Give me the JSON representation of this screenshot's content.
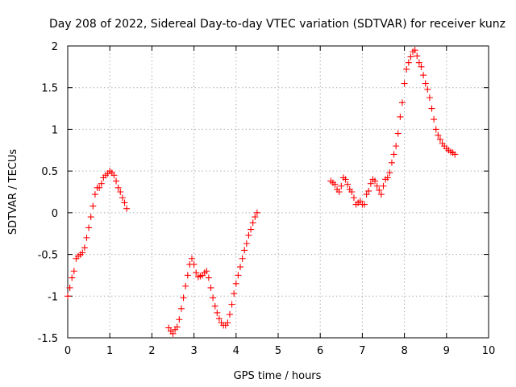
{
  "chart_data": {
    "type": "scatter",
    "title": "Day 208 of 2022, Sidereal Day-to-day VTEC variation (SDTVAR) for receiver kunz",
    "xlabel": "GPS time / hours",
    "ylabel": "SDTVAR / TECUs",
    "xlim": [
      0,
      10
    ],
    "ylim": [
      -1.5,
      2
    ],
    "x_ticks": [
      0,
      1,
      2,
      3,
      4,
      5,
      6,
      7,
      8,
      9,
      10
    ],
    "y_ticks": [
      -1.5,
      -1,
      -0.5,
      0,
      0.5,
      1,
      1.5,
      2
    ],
    "x_tick_labels": [
      "0",
      "1",
      "2",
      "3",
      "4",
      "5",
      "6",
      "7",
      "8",
      "9",
      "10"
    ],
    "y_tick_labels": [
      "-1.5",
      "-1",
      "-0.5",
      "0",
      "0.5",
      "1",
      "1.5",
      "2"
    ],
    "grid": true,
    "marker": "plus",
    "color": "#ff0000",
    "series": [
      {
        "name": "segment-1",
        "x": [
          0.0,
          0.05,
          0.1,
          0.15,
          0.2,
          0.25,
          0.3,
          0.35,
          0.4,
          0.45,
          0.5,
          0.55,
          0.6,
          0.65,
          0.7,
          0.75,
          0.8,
          0.85,
          0.9,
          0.95,
          1.0,
          1.05,
          1.1,
          1.15,
          1.2,
          1.25,
          1.3,
          1.35,
          1.4
        ],
        "y": [
          -1.0,
          -0.9,
          -0.78,
          -0.7,
          -0.55,
          -0.52,
          -0.5,
          -0.48,
          -0.42,
          -0.3,
          -0.18,
          -0.05,
          0.08,
          0.22,
          0.3,
          0.3,
          0.35,
          0.42,
          0.45,
          0.47,
          0.5,
          0.48,
          0.45,
          0.38,
          0.3,
          0.25,
          0.18,
          0.12,
          0.05
        ]
      },
      {
        "name": "segment-2",
        "x": [
          2.4,
          2.45,
          2.5,
          2.55,
          2.6,
          2.65,
          2.7,
          2.75,
          2.8,
          2.85,
          2.9,
          2.95,
          3.0,
          3.05,
          3.1,
          3.15,
          3.2,
          3.25,
          3.3,
          3.35,
          3.4,
          3.45,
          3.5,
          3.55,
          3.6,
          3.65,
          3.7,
          3.75,
          3.8,
          3.85,
          3.9,
          3.95,
          4.0,
          4.05,
          4.1,
          4.15,
          4.2,
          4.25,
          4.3,
          4.35,
          4.4,
          4.45,
          4.5
        ],
        "y": [
          -1.38,
          -1.42,
          -1.45,
          -1.4,
          -1.37,
          -1.28,
          -1.15,
          -1.02,
          -0.88,
          -0.75,
          -0.62,
          -0.55,
          -0.62,
          -0.72,
          -0.77,
          -0.76,
          -0.75,
          -0.72,
          -0.7,
          -0.78,
          -0.9,
          -1.02,
          -1.12,
          -1.2,
          -1.27,
          -1.32,
          -1.35,
          -1.35,
          -1.32,
          -1.22,
          -1.1,
          -0.97,
          -0.85,
          -0.75,
          -0.65,
          -0.55,
          -0.45,
          -0.37,
          -0.27,
          -0.2,
          -0.12,
          -0.05,
          0.0
        ]
      },
      {
        "name": "segment-3",
        "x": [
          6.25,
          6.3,
          6.35,
          6.4,
          6.45,
          6.5,
          6.55,
          6.6,
          6.65,
          6.7,
          6.75,
          6.8,
          6.85,
          6.9,
          6.95,
          7.0,
          7.05,
          7.1,
          7.15,
          7.2,
          7.25,
          7.3,
          7.35,
          7.4,
          7.45,
          7.5,
          7.55,
          7.6,
          7.65,
          7.7,
          7.75,
          7.8,
          7.85,
          7.9,
          7.95,
          8.0,
          8.05,
          8.1,
          8.15,
          8.2,
          8.25,
          8.3,
          8.35,
          8.4,
          8.45,
          8.5,
          8.55,
          8.6,
          8.65,
          8.7,
          8.75,
          8.8,
          8.85,
          8.9,
          8.95,
          9.0,
          9.05,
          9.1,
          9.15,
          9.2
        ],
        "y": [
          0.38,
          0.36,
          0.34,
          0.28,
          0.25,
          0.32,
          0.42,
          0.4,
          0.34,
          0.28,
          0.25,
          0.18,
          0.1,
          0.12,
          0.14,
          0.1,
          0.1,
          0.22,
          0.26,
          0.35,
          0.4,
          0.38,
          0.32,
          0.27,
          0.22,
          0.32,
          0.4,
          0.42,
          0.48,
          0.6,
          0.7,
          0.8,
          0.95,
          1.15,
          1.32,
          1.55,
          1.72,
          1.8,
          1.87,
          1.93,
          1.95,
          1.88,
          1.8,
          1.75,
          1.65,
          1.55,
          1.48,
          1.38,
          1.25,
          1.12,
          1.0,
          0.93,
          0.88,
          0.83,
          0.8,
          0.77,
          0.75,
          0.73,
          0.72,
          0.7
        ]
      }
    ]
  }
}
